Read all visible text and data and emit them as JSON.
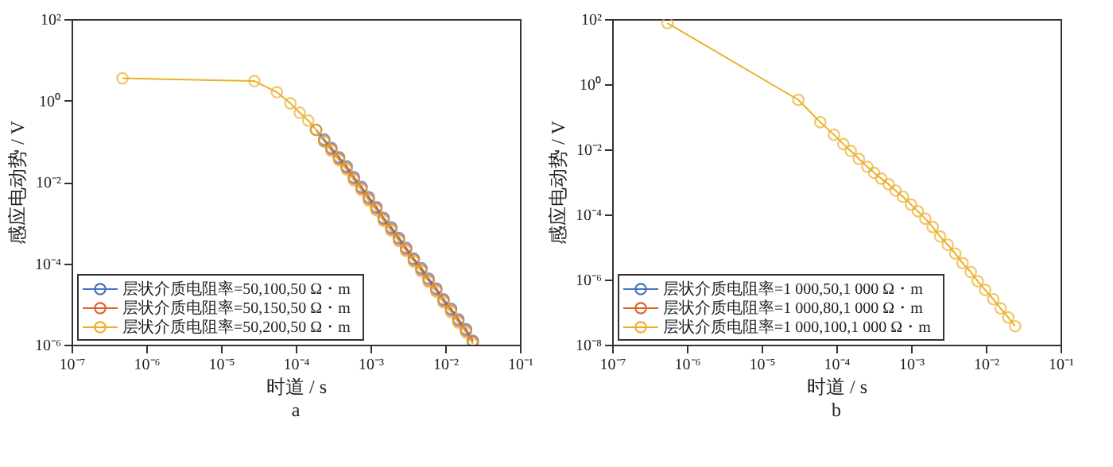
{
  "chart_data": [
    {
      "type": "line",
      "xlabel": "时道 / s",
      "ylabel": "感应电动势 / V",
      "annotations": [
        "a"
      ],
      "log": "xy",
      "marker": "circle",
      "legend": "bottom left",
      "xlim": [
        1e-07,
        0.1
      ],
      "ylim": [
        1e-06,
        100
      ],
      "xticks": [
        {
          "value": 1e-07,
          "label": "10⁻⁷"
        },
        {
          "value": 1e-06,
          "label": "10⁻⁶"
        },
        {
          "value": 1e-05,
          "label": "10⁻⁵"
        },
        {
          "value": 0.0001,
          "label": "10⁻⁴"
        },
        {
          "value": 0.001,
          "label": "10⁻³"
        },
        {
          "value": 0.01,
          "label": "10⁻²"
        },
        {
          "value": 0.1,
          "label": "10⁻¹"
        }
      ],
      "yticks": [
        {
          "value": 1e-06,
          "label": "10⁻⁶"
        },
        {
          "value": 0.0001,
          "label": "10⁻⁴"
        },
        {
          "value": 0.01,
          "label": "10⁻²"
        },
        {
          "value": 1,
          "label": "10⁰"
        },
        {
          "value": 100,
          "label": "10²"
        }
      ],
      "x": [
        4.8e-07,
        2.8e-05,
        5.6e-05,
        8.5e-05,
        0.000113,
        0.000147,
        0.000187,
        0.00024,
        0.0003,
        0.00038,
        0.00048,
        0.0006,
        0.00076,
        0.00095,
        0.0012,
        0.0015,
        0.0019,
        0.0024,
        0.003,
        0.0038,
        0.0048,
        0.006,
        0.0076,
        0.0095,
        0.012,
        0.015,
        0.019,
        0.0234
      ],
      "series": [
        {
          "name": "层状介质电阻率=50,100,50 Ω・m",
          "color": "#4a72c0",
          "values": [
            null,
            null,
            null,
            null,
            null,
            null,
            0.19,
            0.11,
            0.068,
            0.04,
            0.024,
            0.013,
            0.0075,
            0.0042,
            0.0024,
            0.0013,
            0.00076,
            0.00042,
            0.00024,
            0.00013,
            7.6e-05,
            4.2e-05,
            2.4e-05,
            1.3e-05,
            7.6e-06,
            4.2e-06,
            2.4e-06,
            1.25e-06
          ]
        },
        {
          "name": "层状介质电阻率=50,150,50 Ω・m",
          "color": "#e0602e",
          "values": [
            null,
            null,
            null,
            null,
            null,
            null,
            0.19,
            0.1,
            0.063,
            0.037,
            0.022,
            0.012,
            0.0069,
            0.0038,
            0.0022,
            0.0012,
            0.00069,
            0.00038,
            0.00022,
            0.00012,
            6.9e-05,
            3.8e-05,
            2.2e-05,
            1.2e-05,
            6.9e-06,
            3.8e-06,
            2.2e-06,
            1.15e-06
          ]
        },
        {
          "name": "层状介质电阻率=50,200,50 Ω・m",
          "color": "#ebb02a",
          "values": [
            3.5,
            3.0,
            1.6,
            0.85,
            0.5,
            0.32,
            0.19,
            0.098,
            0.058,
            0.034,
            0.02,
            0.011,
            0.0063,
            0.0035,
            0.002,
            0.0011,
            0.00063,
            0.00035,
            0.0002,
            0.00011,
            6.3e-05,
            3.5e-05,
            2e-05,
            1.1e-05,
            6.3e-06,
            3.5e-06,
            2e-06,
            1.05e-06
          ]
        }
      ]
    },
    {
      "type": "line",
      "xlabel": "时道 / s",
      "ylabel": "感应电动势 / V",
      "annotations": [
        "b"
      ],
      "log": "xy",
      "marker": "circle",
      "legend": "bottom left",
      "xlim": [
        1e-07,
        0.1
      ],
      "ylim": [
        1e-08,
        100
      ],
      "xticks": [
        {
          "value": 1e-07,
          "label": "10⁻⁷"
        },
        {
          "value": 1e-06,
          "label": "10⁻⁶"
        },
        {
          "value": 1e-05,
          "label": "10⁻⁵"
        },
        {
          "value": 0.0001,
          "label": "10⁻⁴"
        },
        {
          "value": 0.001,
          "label": "10⁻³"
        },
        {
          "value": 0.01,
          "label": "10⁻²"
        },
        {
          "value": 0.1,
          "label": "10⁻¹"
        }
      ],
      "yticks": [
        {
          "value": 1e-08,
          "label": "10⁻⁸"
        },
        {
          "value": 1e-06,
          "label": "10⁻⁶"
        },
        {
          "value": 0.0001,
          "label": "10⁻⁴"
        },
        {
          "value": 0.01,
          "label": "10⁻²"
        },
        {
          "value": 1,
          "label": "10⁰"
        },
        {
          "value": 100,
          "label": "10²"
        }
      ],
      "x": [
        5.5e-07,
        3.1e-05,
        6.1e-05,
        9.3e-05,
        0.000124,
        0.000156,
        0.0002,
        0.00026,
        0.00032,
        0.0004,
        0.0005,
        0.00062,
        0.00078,
        0.001,
        0.00123,
        0.00155,
        0.00195,
        0.00245,
        0.0031,
        0.0039,
        0.0049,
        0.0063,
        0.0078,
        0.0098,
        0.0126,
        0.0158,
        0.02,
        0.0247
      ],
      "series": [
        {
          "name": "层状介质电阻率=1 000,50,1 000 Ω・m",
          "color": "#4a72c0",
          "values": [
            null,
            null,
            null,
            null,
            null,
            null,
            null,
            null,
            null,
            null,
            null,
            null,
            null,
            null,
            null,
            null,
            null,
            null,
            null,
            null,
            null,
            null,
            null,
            null,
            null,
            null,
            null,
            null
          ]
        },
        {
          "name": "层状介质电阻率=1 000,80,1 000 Ω・m",
          "color": "#e0602e",
          "values": [
            null,
            null,
            null,
            null,
            null,
            null,
            null,
            null,
            null,
            null,
            null,
            null,
            null,
            null,
            null,
            null,
            null,
            null,
            null,
            null,
            null,
            null,
            null,
            null,
            null,
            null,
            null,
            null
          ]
        },
        {
          "name": "层状介质电阻率=1 000,100,1 000 Ω・m",
          "color": "#ebb02a",
          "values": [
            75,
            0.33,
            0.068,
            0.028,
            0.0145,
            0.0089,
            0.0051,
            0.0029,
            0.0019,
            0.00126,
            0.00085,
            0.00054,
            0.00035,
            0.0002,
            0.000126,
            7.4e-05,
            4.1e-05,
            2.1e-05,
            1.17e-05,
            6.3e-06,
            3.2e-06,
            1.7e-06,
            8.9e-07,
            4.8e-07,
            2.5e-07,
            1.3e-07,
            6.9e-08,
            3.7e-08
          ]
        }
      ]
    }
  ]
}
